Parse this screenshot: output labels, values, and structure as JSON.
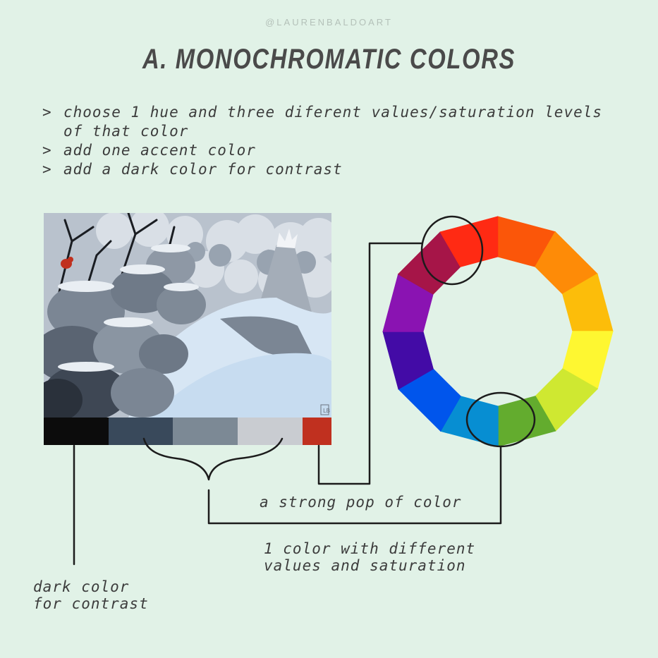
{
  "handle": "@LAURENBALDOART",
  "title": "A. MONOCHROMATIC COLORS",
  "bullets": [
    {
      "mark": ">",
      "text": "choose 1 hue and three diferent values/saturation levels of that color"
    },
    {
      "mark": ">",
      "text": "add one accent color"
    },
    {
      "mark": ">",
      "text": "add a dark color for contrast"
    }
  ],
  "illustration": {
    "subject": "snowy forest with bushes, a red cardinal and a crowned figure",
    "signature": "LB"
  },
  "palette": [
    {
      "name": "black",
      "color": "#0c0c0c"
    },
    {
      "name": "dark-slate",
      "color": "#39495b"
    },
    {
      "name": "slate-grey",
      "color": "#7c8995"
    },
    {
      "name": "light-grey",
      "color": "#c9ccd1"
    },
    {
      "name": "red-accent",
      "color": "#c0301f"
    }
  ],
  "palette_weights": [
    1,
    1,
    1,
    1,
    0.45
  ],
  "color_wheel": {
    "segments": [
      "#fb5609",
      "#fe8b07",
      "#fcbd0a",
      "#fef731",
      "#cfe831",
      "#63ac2e",
      "#078ed2",
      "#0055ec",
      "#430ba6",
      "#8a13b2",
      "#a61548",
      "#ff2a13"
    ],
    "circled": [
      "#ff2a13",
      "#078ed2"
    ]
  },
  "labels": {
    "pop": "a strong pop of color",
    "values": [
      "1 color with different",
      "values and saturation"
    ],
    "dark": [
      "dark color",
      "for contrast"
    ]
  }
}
